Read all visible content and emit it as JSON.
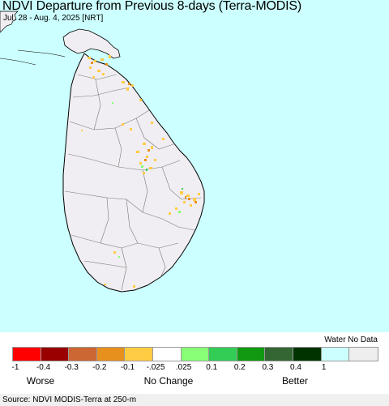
{
  "map": {
    "title": "NDVI Departure from Previous 8-days (Terra-MODIS)",
    "subtitle": "Jul. 28 - Aug. 4, 2025 [NRT]",
    "colors": {
      "water": "#ccffff",
      "land": "#f0eef2",
      "boundary": "#000000",
      "district": "#777777"
    }
  },
  "legend": {
    "water_no_data_label": "Water No Data",
    "swatch_colors": [
      "#ff0000",
      "#990000",
      "#cc6633",
      "#e8901e",
      "#ffcc44",
      "#ffffff",
      "#88ff77",
      "#33cc55",
      "#119911",
      "#336633",
      "#003300",
      "#ccffff",
      "#eeeeee"
    ],
    "ticks": [
      "-1",
      "-0.4",
      "-0.3",
      "-0.2",
      "-0.1",
      "-.025",
      ".025",
      "0.1",
      "0.2",
      "0.3",
      "0.4",
      "1"
    ],
    "worse_label": "Worse",
    "no_change_label": "No Change",
    "better_label": "Better"
  },
  "footer": {
    "source": "Source: NDVI MODIS-Terra at 250-m"
  }
}
